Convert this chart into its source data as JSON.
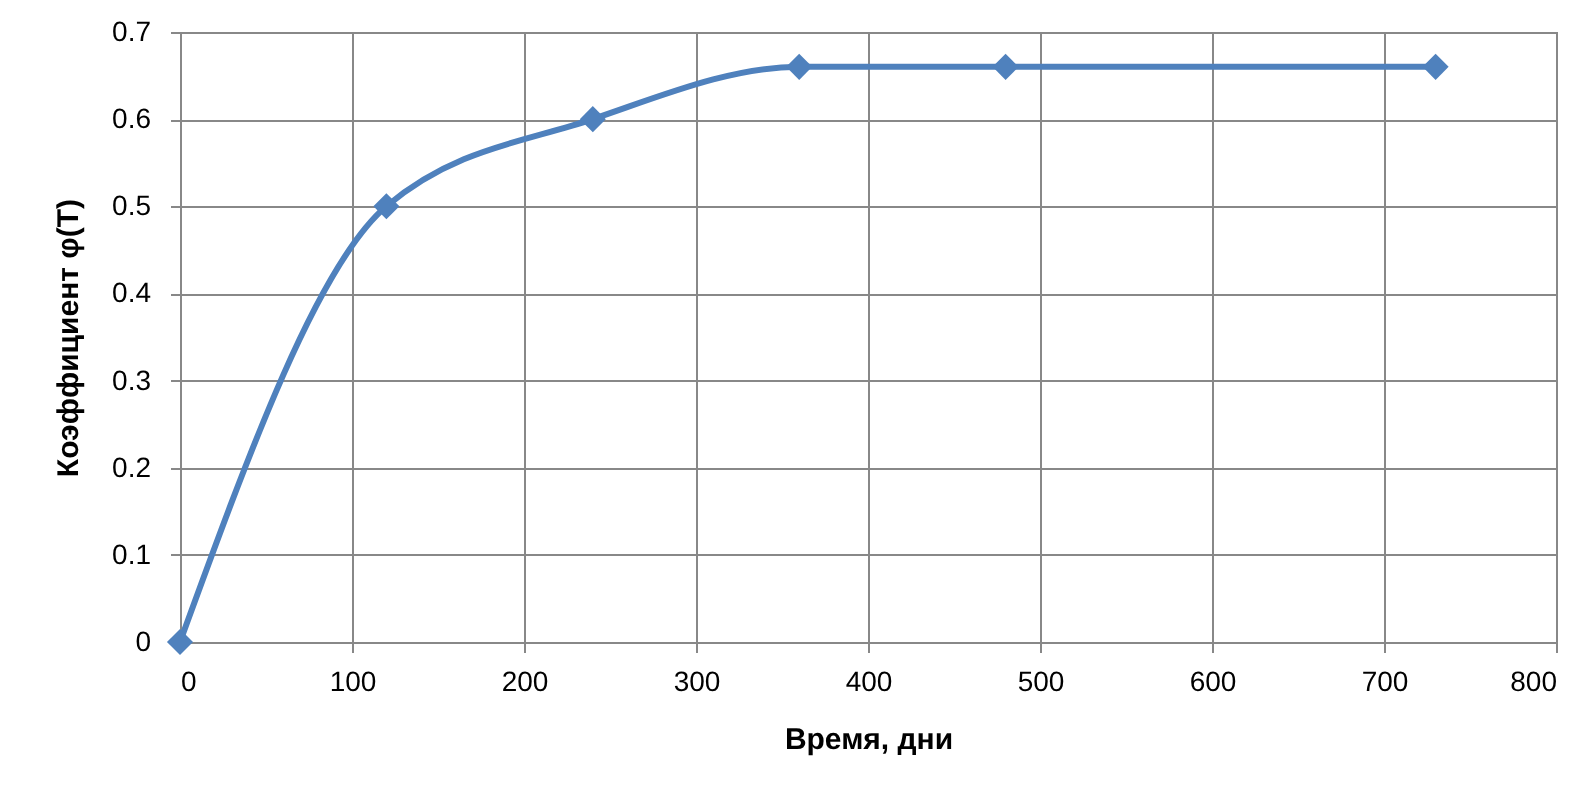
{
  "chart_data": {
    "type": "line",
    "xlabel": "Время, дни",
    "ylabel": "Коэффициент φ(T)",
    "x": [
      0,
      120,
      240,
      360,
      480,
      730
    ],
    "series": [
      {
        "color": "#4f81bd",
        "values": [
          0,
          0.5,
          0.6,
          0.66,
          0.66,
          0.66
        ]
      }
    ],
    "xlim": [
      0,
      800
    ],
    "xticks": [
      0,
      100,
      200,
      300,
      400,
      500,
      600,
      700,
      800
    ],
    "ylim": [
      0,
      0.7
    ],
    "yticks": [
      0,
      0.1,
      0.2,
      0.3,
      0.4,
      0.5,
      0.6,
      0.7
    ],
    "grid": true,
    "marker": "diamond",
    "line_style": "solid"
  }
}
